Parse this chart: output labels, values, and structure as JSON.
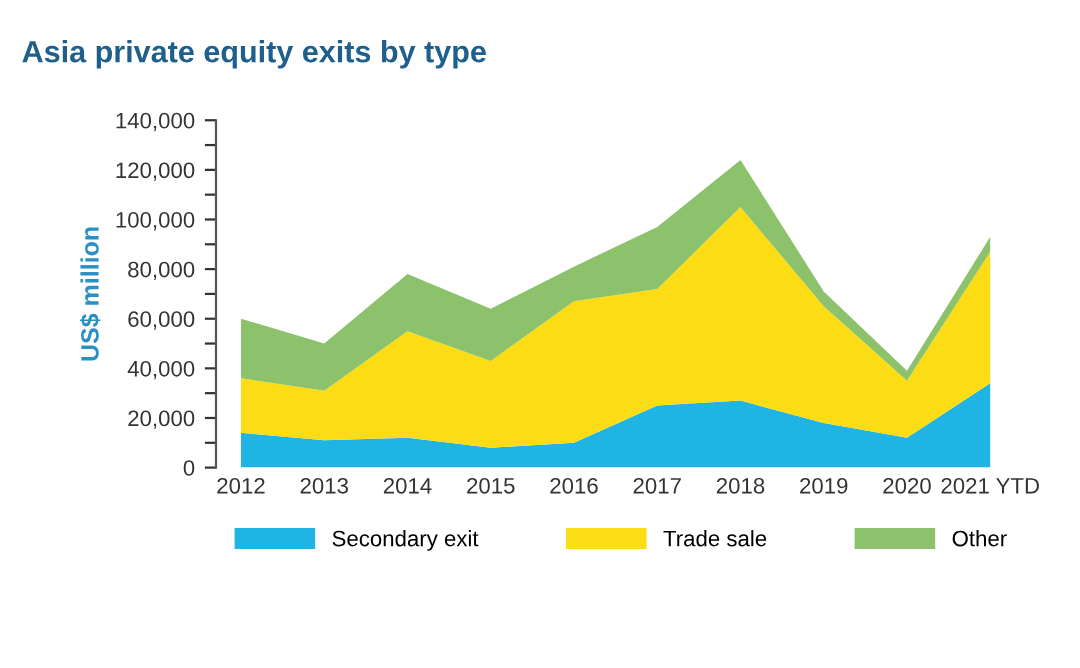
{
  "chart_data": {
    "type": "area",
    "stacked": true,
    "title": "Asia private equity exits by type",
    "ylabel": "US$ million",
    "categories": [
      "2012",
      "2013",
      "2014",
      "2015",
      "2016",
      "2017",
      "2018",
      "2019",
      "2020",
      "2021 YTD"
    ],
    "series": [
      {
        "name": "Secondary exit",
        "color": "#1fb4e4",
        "values": [
          14000,
          11000,
          12000,
          8000,
          10000,
          25000,
          27000,
          18000,
          12000,
          34000
        ]
      },
      {
        "name": "Trade sale",
        "color": "#fcdc14",
        "values": [
          22000,
          20000,
          43000,
          35000,
          57000,
          47000,
          78000,
          47000,
          23000,
          53000
        ]
      },
      {
        "name": "Other",
        "color": "#8dc26c",
        "values": [
          24000,
          19000,
          23000,
          21000,
          14000,
          25000,
          19000,
          6000,
          4000,
          6000
        ]
      }
    ],
    "ylim": [
      0,
      140000
    ],
    "yticks": [
      {
        "value": 0,
        "label": "0"
      },
      {
        "value": 10000,
        "label": null
      },
      {
        "value": 20000,
        "label": "20,000"
      },
      {
        "value": 30000,
        "label": null
      },
      {
        "value": 40000,
        "label": "40,000"
      },
      {
        "value": 50000,
        "label": null
      },
      {
        "value": 60000,
        "label": "60,000"
      },
      {
        "value": 70000,
        "label": null
      },
      {
        "value": 80000,
        "label": "80,000"
      },
      {
        "value": 90000,
        "label": null
      },
      {
        "value": 100000,
        "label": "100,000"
      },
      {
        "value": 110000,
        "label": null
      },
      {
        "value": 120000,
        "label": "120,000"
      },
      {
        "value": 130000,
        "label": null
      },
      {
        "value": 140000,
        "label": "140,000"
      }
    ],
    "grid": false,
    "legend": "bottom"
  }
}
